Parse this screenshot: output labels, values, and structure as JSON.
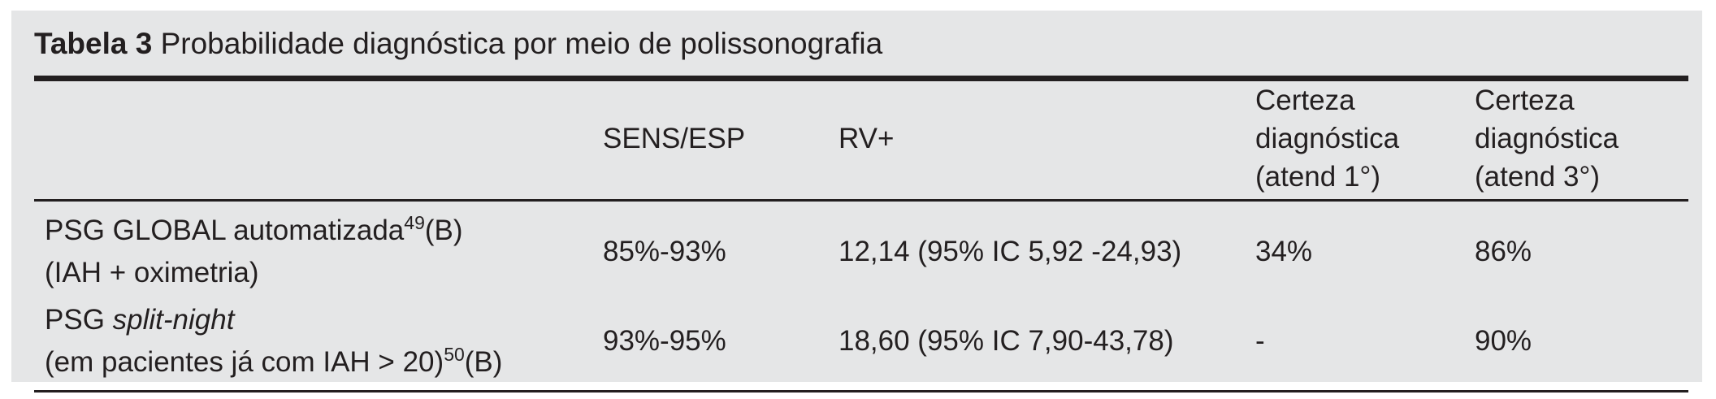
{
  "title": {
    "bold": "Tabela 3",
    "rest": "Probabilidade diagnóstica por meio de polissonografia"
  },
  "table": {
    "headers": {
      "col1": "",
      "col2": "SENS/ESP",
      "col3": "RV+",
      "col4": "Certeza diagnóstica (atend 1°)",
      "col5": "Certeza diagnóstica (atend 3°)"
    },
    "rows": [
      {
        "label": {
          "line1_text": "PSG GLOBAL automatizada",
          "line1_sup": "49",
          "line1_suffix": "(B)",
          "line2_text": "(IAH + oximetria)"
        },
        "sens_esp": "85%-93%",
        "rv_plus": "12,14 (95% IC 5,92 -24,93)",
        "certeza_atend_1": "34%",
        "certeza_atend_3": "86%"
      },
      {
        "label": {
          "line1_text": "PSG ",
          "line1_italic": "split-night",
          "line2_text": "(em pacientes já com IAH > 20)",
          "line2_sup": "50",
          "line2_suffix": "(B)"
        },
        "sens_esp": "93%-95%",
        "rv_plus": "18,60 (95% IC 7,90-43,78)",
        "certeza_atend_1": "-",
        "certeza_atend_3": "90%"
      }
    ]
  },
  "colors": {
    "panel_background": "#e5e6e7",
    "text": "#231f20",
    "rule": "#231f20",
    "page_background": "#ffffff"
  }
}
